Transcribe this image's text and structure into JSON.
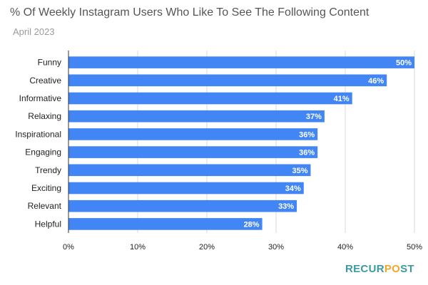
{
  "chart_data": {
    "type": "bar",
    "orientation": "horizontal",
    "title": "% Of Weekly Instagram Users Who Like To See The Following Content",
    "subtitle": "April 2023",
    "categories": [
      "Funny",
      "Creative",
      "Informative",
      "Relaxing",
      "Inspirational",
      "Engaging",
      "Trendy",
      "Exciting",
      "Relevant",
      "Helpful"
    ],
    "values": [
      50,
      46,
      41,
      37,
      36,
      36,
      35,
      34,
      33,
      28
    ],
    "data_labels": [
      "50%",
      "46%",
      "41%",
      "37%",
      "36%",
      "36%",
      "35%",
      "34%",
      "33%",
      "28%"
    ],
    "xlim": [
      0,
      50
    ],
    "x_ticks": [
      0,
      10,
      20,
      30,
      40,
      50
    ],
    "x_tick_labels": [
      "0%",
      "10%",
      "20%",
      "30%",
      "40%",
      "50%"
    ],
    "bar_color": "#4285F4",
    "grid": true,
    "legend": "none"
  },
  "logo": {
    "part_a": "RECUR",
    "part_b": "P",
    "part_c": "ST",
    "mark": "O"
  }
}
